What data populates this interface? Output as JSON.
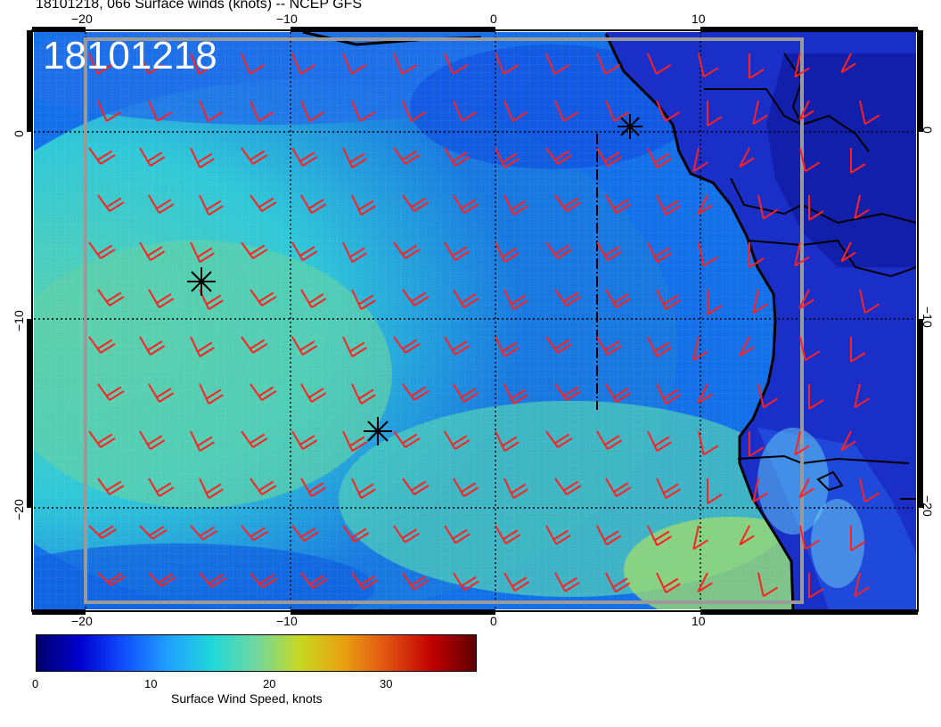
{
  "title": "18101218, 066 Surface winds (knots) -- NCEP GFS",
  "stamp": "18101218",
  "map": {
    "lon_ticks": [
      "−20",
      "−10",
      "0",
      "10"
    ],
    "lat_ticks": [
      "0",
      "−10",
      "−20"
    ],
    "storm_markers": [
      "x-star",
      "x-star",
      "x-star"
    ],
    "barb_color": "#ff2020",
    "coast_color": "#000000"
  },
  "colorbar": {
    "title": "Surface Wind Speed, knots",
    "tick_labels": [
      "0",
      "10",
      "20",
      "30"
    ],
    "stops": [
      "#00006a",
      "#0000d0",
      "#1050ff",
      "#20a0ff",
      "#20d8d8",
      "#70d8a0",
      "#c8d820",
      "#e8a010",
      "#e05010",
      "#c00000",
      "#600000"
    ]
  }
}
